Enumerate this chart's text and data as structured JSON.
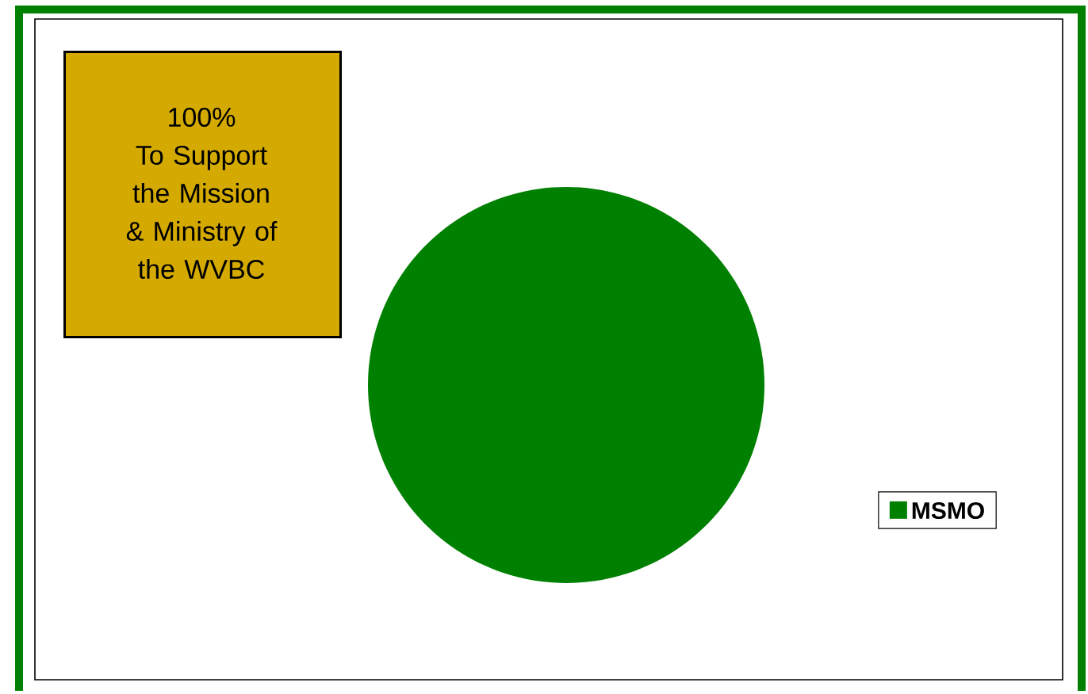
{
  "chart_data": {
    "type": "pie",
    "categories": [
      "MSMO"
    ],
    "values": [
      100
    ],
    "colors": [
      "#008000"
    ],
    "legend": "right",
    "annotations": [
      "100%",
      "To Support the Mission & Ministry of the WVBC"
    ]
  }
}
